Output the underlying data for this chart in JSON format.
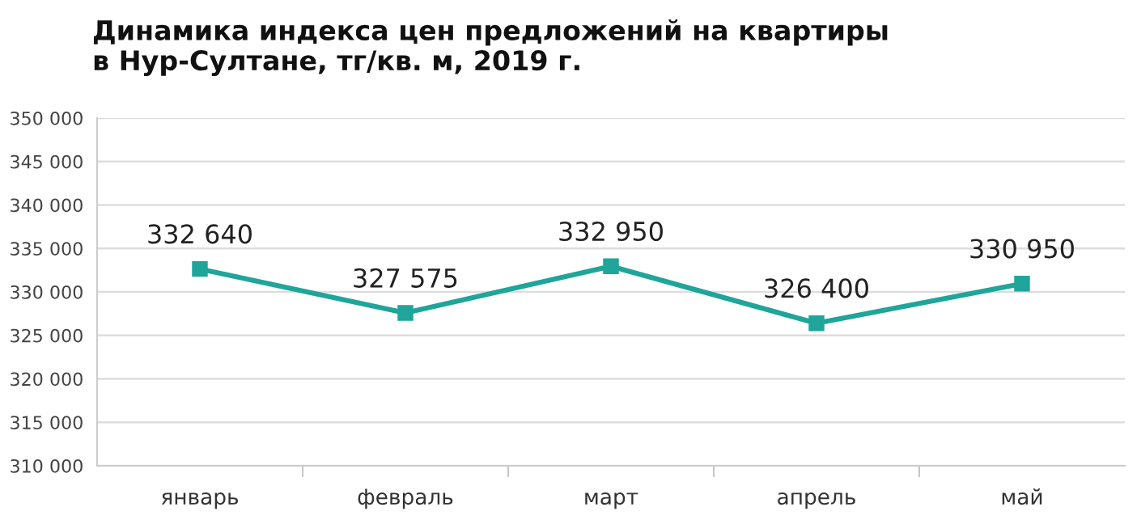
{
  "chart_data": {
    "type": "line",
    "title": "Динамика индекса цен предложений на квартиры\nв Нур-Султане, тг/кв. м, 2019 г.",
    "categories": [
      "январь",
      "февраль",
      "март",
      "апрель",
      "май"
    ],
    "series": [
      {
        "color": "#1fa59a",
        "values": [
          332640,
          327575,
          332950,
          326400,
          330950
        ],
        "value_labels": [
          "332 640",
          "327 575",
          "332 950",
          "326 400",
          "330 950"
        ]
      }
    ],
    "ylim": [
      310000,
      350000
    ],
    "yticks": [
      {
        "value": 310000,
        "label": "310 000"
      },
      {
        "value": 315000,
        "label": "315 000"
      },
      {
        "value": 320000,
        "label": "320 000"
      },
      {
        "value": 325000,
        "label": "325 000"
      },
      {
        "value": 330000,
        "label": "330 000"
      },
      {
        "value": 335000,
        "label": "335 000"
      },
      {
        "value": 340000,
        "label": "340 000"
      },
      {
        "value": 345000,
        "label": "345 000"
      },
      {
        "value": 350000,
        "label": "350 000"
      }
    ],
    "grid": "y",
    "marker": "square",
    "line_style": "solid",
    "legend": false
  }
}
